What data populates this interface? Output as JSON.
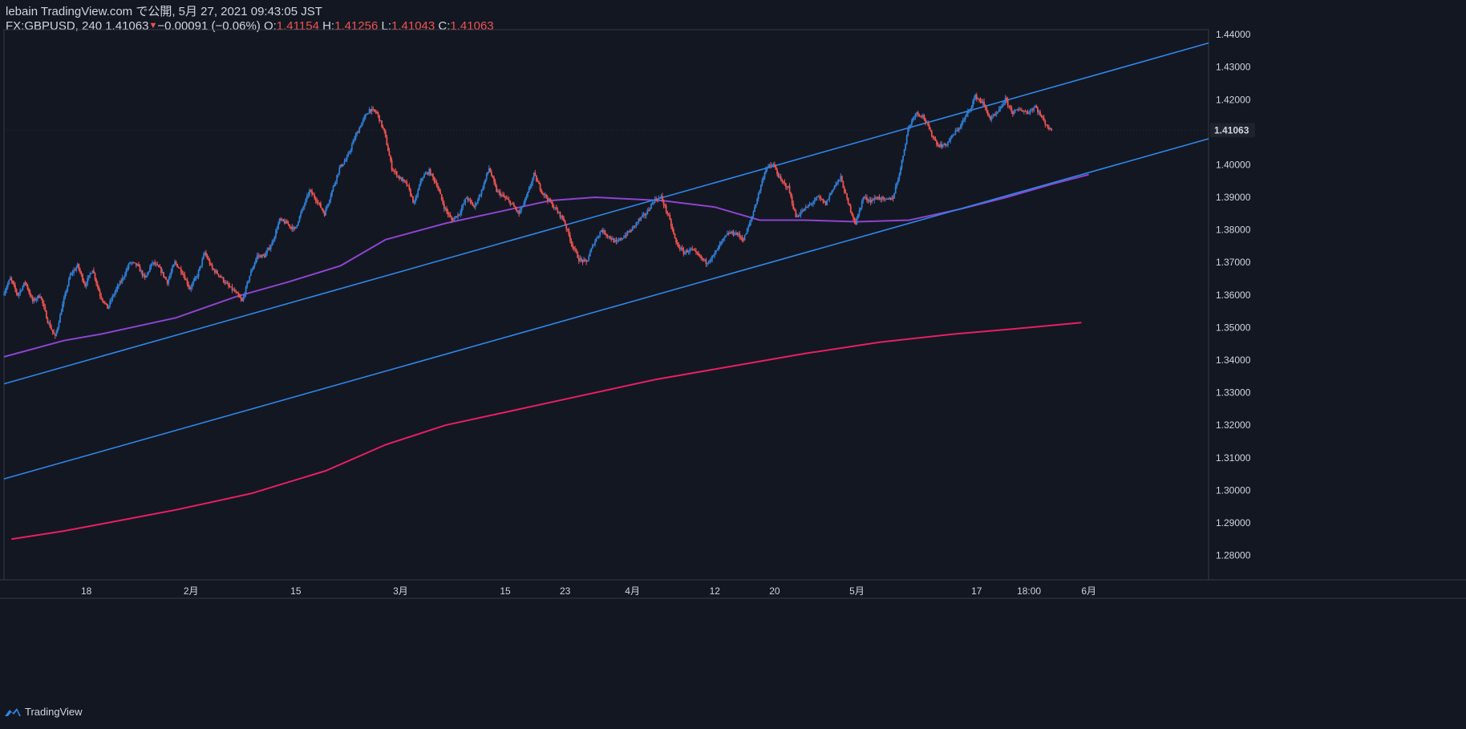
{
  "header": {
    "publish_line": "lebain TradingView.com で公開, 5月 27, 2021 09:43:05 JST",
    "symbol": "FX:GBPUSD, 240",
    "last": "1.41063",
    "change": "−0.00091 (−0.06%)",
    "o_label": "O:",
    "o_value": "1.41154",
    "h_label": "H:",
    "h_value": "1.41256",
    "l_label": "L:",
    "l_value": "1.41043",
    "c_label": "C:",
    "c_value": "1.41063"
  },
  "brand": {
    "name": "TradingView",
    "icon": "tradingview-logo-icon"
  },
  "colors": {
    "background": "#131722",
    "up": "#2f7fd6",
    "down": "#ef5350",
    "channel": "#2f86e8",
    "ma_fast": "#8e44d0",
    "ma_slow": "#e91e63",
    "axis_text": "#d1d4dc"
  },
  "chart_data": {
    "type": "candlestick",
    "symbol": "GBPUSD",
    "ylim": [
      1.2725,
      1.4415
    ],
    "y_ticks": [
      "1.28000",
      "1.29000",
      "1.30000",
      "1.31000",
      "1.32000",
      "1.33000",
      "1.34000",
      "1.35000",
      "1.36000",
      "1.37000",
      "1.38000",
      "1.39000",
      "1.40000",
      "1.41000",
      "1.42000",
      "1.43000",
      "1.44000"
    ],
    "last_price_label": "1.41063",
    "last_price": 1.41063,
    "x_ticks": [
      {
        "label": "18",
        "day": 18
      },
      {
        "label": "2月",
        "day": 32
      },
      {
        "label": "15",
        "day": 46
      },
      {
        "label": "3月",
        "day": 60
      },
      {
        "label": "15",
        "day": 74
      },
      {
        "label": "23",
        "day": 82
      },
      {
        "label": "4月",
        "day": 91
      },
      {
        "label": "12",
        "day": 102
      },
      {
        "label": "20",
        "day": 110
      },
      {
        "label": "5月",
        "day": 121
      },
      {
        "label": "17",
        "day": 137
      },
      {
        "label": "18:00",
        "day": 144
      },
      {
        "label": "6月",
        "day": 152
      }
    ],
    "xlim_days": [
      7,
      168
    ],
    "price_path": [
      [
        7,
        1.36
      ],
      [
        8,
        1.365
      ],
      [
        9,
        1.36
      ],
      [
        10,
        1.364
      ],
      [
        11,
        1.358
      ],
      [
        12,
        1.36
      ],
      [
        13,
        1.352
      ],
      [
        14,
        1.347
      ],
      [
        15,
        1.357
      ],
      [
        16,
        1.366
      ],
      [
        17,
        1.369
      ],
      [
        18,
        1.363
      ],
      [
        19,
        1.368
      ],
      [
        20,
        1.36
      ],
      [
        21,
        1.356
      ],
      [
        22,
        1.361
      ],
      [
        23,
        1.365
      ],
      [
        24,
        1.37
      ],
      [
        25,
        1.369
      ],
      [
        26,
        1.365
      ],
      [
        27,
        1.37
      ],
      [
        28,
        1.368
      ],
      [
        29,
        1.364
      ],
      [
        30,
        1.37
      ],
      [
        31,
        1.367
      ],
      [
        32,
        1.362
      ],
      [
        33,
        1.366
      ],
      [
        34,
        1.373
      ],
      [
        35,
        1.368
      ],
      [
        36,
        1.366
      ],
      [
        37,
        1.363
      ],
      [
        38,
        1.361
      ],
      [
        39,
        1.358
      ],
      [
        40,
        1.366
      ],
      [
        41,
        1.372
      ],
      [
        42,
        1.372
      ],
      [
        43,
        1.376
      ],
      [
        44,
        1.383
      ],
      [
        45,
        1.382
      ],
      [
        46,
        1.38
      ],
      [
        47,
        1.386
      ],
      [
        48,
        1.392
      ],
      [
        49,
        1.389
      ],
      [
        50,
        1.385
      ],
      [
        51,
        1.392
      ],
      [
        52,
        1.399
      ],
      [
        53,
        1.402
      ],
      [
        54,
        1.408
      ],
      [
        55,
        1.413
      ],
      [
        56,
        1.417
      ],
      [
        57,
        1.416
      ],
      [
        58,
        1.41
      ],
      [
        59,
        1.399
      ],
      [
        60,
        1.396
      ],
      [
        61,
        1.394
      ],
      [
        62,
        1.388
      ],
      [
        63,
        1.396
      ],
      [
        64,
        1.398
      ],
      [
        65,
        1.394
      ],
      [
        66,
        1.387
      ],
      [
        67,
        1.383
      ],
      [
        68,
        1.385
      ],
      [
        69,
        1.39
      ],
      [
        70,
        1.387
      ],
      [
        71,
        1.392
      ],
      [
        72,
        1.399
      ],
      [
        73,
        1.392
      ],
      [
        74,
        1.39
      ],
      [
        75,
        1.388
      ],
      [
        76,
        1.385
      ],
      [
        77,
        1.39
      ],
      [
        78,
        1.397
      ],
      [
        79,
        1.392
      ],
      [
        80,
        1.389
      ],
      [
        81,
        1.386
      ],
      [
        82,
        1.383
      ],
      [
        83,
        1.376
      ],
      [
        84,
        1.371
      ],
      [
        85,
        1.37
      ],
      [
        86,
        1.376
      ],
      [
        87,
        1.38
      ],
      [
        88,
        1.378
      ],
      [
        89,
        1.376
      ],
      [
        90,
        1.378
      ],
      [
        91,
        1.38
      ],
      [
        92,
        1.383
      ],
      [
        93,
        1.385
      ],
      [
        94,
        1.389
      ],
      [
        95,
        1.39
      ],
      [
        96,
        1.384
      ],
      [
        97,
        1.376
      ],
      [
        98,
        1.373
      ],
      [
        99,
        1.374
      ],
      [
        100,
        1.372
      ],
      [
        101,
        1.37
      ],
      [
        102,
        1.372
      ],
      [
        103,
        1.376
      ],
      [
        104,
        1.379
      ],
      [
        105,
        1.379
      ],
      [
        106,
        1.377
      ],
      [
        107,
        1.383
      ],
      [
        108,
        1.391
      ],
      [
        109,
        1.399
      ],
      [
        110,
        1.4
      ],
      [
        111,
        1.395
      ],
      [
        112,
        1.393
      ],
      [
        113,
        1.384
      ],
      [
        114,
        1.386
      ],
      [
        115,
        1.388
      ],
      [
        116,
        1.39
      ],
      [
        117,
        1.388
      ],
      [
        118,
        1.393
      ],
      [
        119,
        1.396
      ],
      [
        120,
        1.388
      ],
      [
        121,
        1.382
      ],
      [
        122,
        1.39
      ],
      [
        123,
        1.389
      ],
      [
        124,
        1.39
      ],
      [
        125,
        1.389
      ],
      [
        126,
        1.39
      ],
      [
        127,
        1.399
      ],
      [
        128,
        1.411
      ],
      [
        129,
        1.416
      ],
      [
        130,
        1.415
      ],
      [
        131,
        1.41
      ],
      [
        132,
        1.406
      ],
      [
        133,
        1.406
      ],
      [
        134,
        1.409
      ],
      [
        135,
        1.412
      ],
      [
        136,
        1.416
      ],
      [
        137,
        1.421
      ],
      [
        138,
        1.419
      ],
      [
        139,
        1.414
      ],
      [
        140,
        1.416
      ],
      [
        141,
        1.42
      ],
      [
        142,
        1.416
      ],
      [
        143,
        1.417
      ],
      [
        144,
        1.416
      ],
      [
        145,
        1.418
      ],
      [
        146,
        1.414
      ],
      [
        147,
        1.4106
      ]
    ],
    "channel_upper": {
      "from": [
        7,
        1.3327
      ],
      "to": [
        168,
        1.4374
      ]
    },
    "channel_lower": {
      "from": [
        7,
        1.3035
      ],
      "to": [
        168,
        1.408
      ]
    },
    "ma_fast": [
      [
        7,
        1.341
      ],
      [
        15,
        1.346
      ],
      [
        20,
        1.348
      ],
      [
        30,
        1.353
      ],
      [
        38,
        1.3595
      ],
      [
        45,
        1.364
      ],
      [
        52,
        1.369
      ],
      [
        58,
        1.377
      ],
      [
        66,
        1.382
      ],
      [
        74,
        1.386
      ],
      [
        80,
        1.389
      ],
      [
        86,
        1.39
      ],
      [
        95,
        1.389
      ],
      [
        102,
        1.387
      ],
      [
        108,
        1.383
      ],
      [
        114,
        1.383
      ],
      [
        121,
        1.3825
      ],
      [
        128,
        1.383
      ],
      [
        135,
        1.3865
      ],
      [
        141,
        1.39
      ],
      [
        147,
        1.394
      ],
      [
        152,
        1.397
      ]
    ],
    "ma_slow": [
      [
        8,
        1.285
      ],
      [
        15,
        1.2875
      ],
      [
        22,
        1.2905
      ],
      [
        30,
        1.294
      ],
      [
        40,
        1.299
      ],
      [
        50,
        1.306
      ],
      [
        58,
        1.314
      ],
      [
        66,
        1.32
      ],
      [
        74,
        1.324
      ],
      [
        84,
        1.329
      ],
      [
        94,
        1.334
      ],
      [
        104,
        1.338
      ],
      [
        114,
        1.342
      ],
      [
        124,
        1.3455
      ],
      [
        134,
        1.348
      ],
      [
        144,
        1.35
      ],
      [
        151,
        1.3515
      ]
    ]
  }
}
